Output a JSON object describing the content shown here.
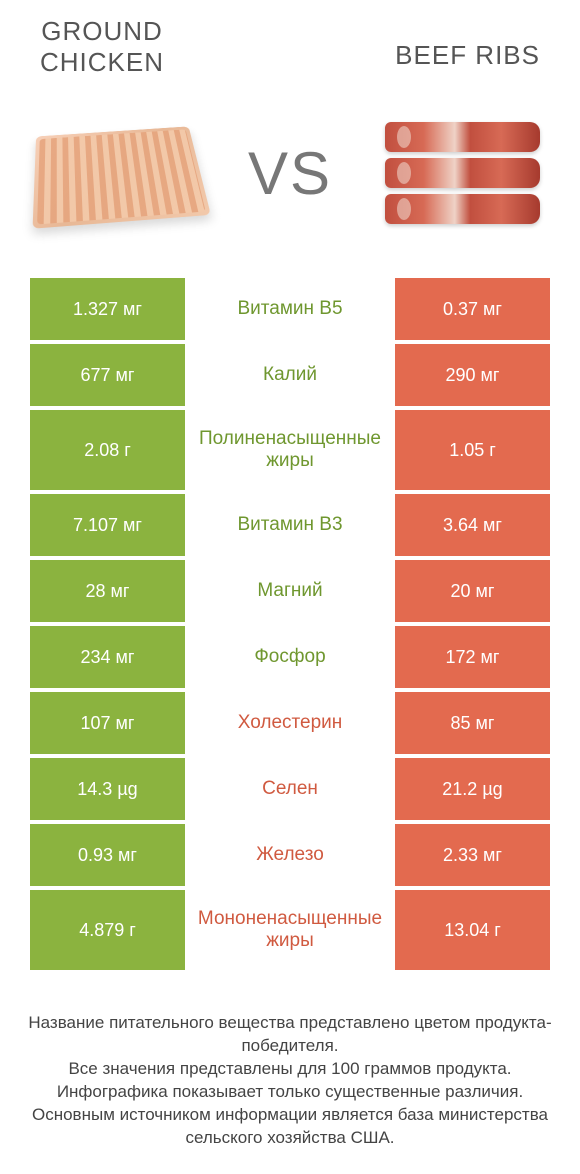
{
  "colors": {
    "left": "#8bb33f",
    "right": "#e36a4f",
    "mid_left_text": "#6f972f",
    "mid_right_text": "#d05a40"
  },
  "header": {
    "left_line1": "GROUND",
    "left_line2": "CHICKEN",
    "right": "BEEF RIBS",
    "vs": "VS"
  },
  "rows": [
    {
      "left": "1.327 мг",
      "mid": "Витамин B5",
      "right": "0.37 мг",
      "winner": "left",
      "tall": false
    },
    {
      "left": "677 мг",
      "mid": "Калий",
      "right": "290 мг",
      "winner": "left",
      "tall": false
    },
    {
      "left": "2.08 г",
      "mid": "Полиненасыщенные жиры",
      "right": "1.05 г",
      "winner": "left",
      "tall": true
    },
    {
      "left": "7.107 мг",
      "mid": "Витамин B3",
      "right": "3.64 мг",
      "winner": "left",
      "tall": false
    },
    {
      "left": "28 мг",
      "mid": "Магний",
      "right": "20 мг",
      "winner": "left",
      "tall": false
    },
    {
      "left": "234 мг",
      "mid": "Фосфор",
      "right": "172 мг",
      "winner": "left",
      "tall": false
    },
    {
      "left": "107 мг",
      "mid": "Холестерин",
      "right": "85 мг",
      "winner": "right",
      "tall": false
    },
    {
      "left": "14.3 µg",
      "mid": "Селен",
      "right": "21.2 µg",
      "winner": "right",
      "tall": false
    },
    {
      "left": "0.93 мг",
      "mid": "Железо",
      "right": "2.33 мг",
      "winner": "right",
      "tall": false
    },
    {
      "left": "4.879 г",
      "mid": "Мононенасыщенные жиры",
      "right": "13.04 г",
      "winner": "right",
      "tall": true
    }
  ],
  "footer": {
    "l1": "Название питательного вещества представлено цветом продукта-победителя.",
    "l2": "Все значения представлены для 100 граммов продукта.",
    "l3": "Инфографика показывает только существенные различия.",
    "l4": "Основным источником информации является база министерства сельского хозяйства США."
  }
}
